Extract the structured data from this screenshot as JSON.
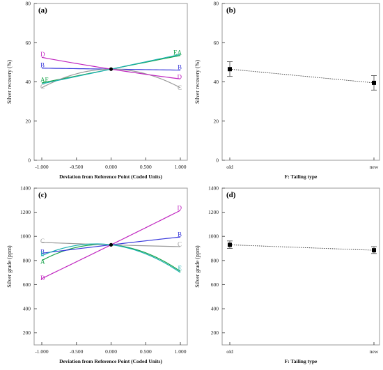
{
  "chart_data": [
    {
      "type": "line",
      "panel_label": "(a)",
      "xlabel": "Deviation from Reference Point (Coded Units)",
      "ylabel": "Silver recovery (%)",
      "xlim": [
        -1,
        1
      ],
      "ylim": [
        0,
        80
      ],
      "xticks": [
        "-1.000",
        "-0.500",
        "0.000",
        "0.500",
        "1.000"
      ],
      "yticks": [
        "0",
        "20",
        "40",
        "60",
        "80"
      ],
      "x": [
        -1,
        0,
        1
      ],
      "series": [
        {
          "name": "A",
          "color": "#16a34a",
          "values": [
            39.5,
            46.5,
            53.5
          ]
        },
        {
          "name": "B",
          "color": "#3b3bdc",
          "values": [
            47.0,
            46.5,
            46.0
          ]
        },
        {
          "name": "C",
          "color": "#9a9a9a",
          "values": [
            37.0,
            46.5,
            37.0
          ]
        },
        {
          "name": "D",
          "color": "#c026c0",
          "values": [
            52.5,
            46.5,
            41.5
          ]
        },
        {
          "name": "E",
          "color": "#1ab0b0",
          "values": [
            39.0,
            46.5,
            54.0
          ]
        }
      ],
      "left_labels": [
        {
          "text": "D",
          "color": "#c026c0",
          "y": 54.0
        },
        {
          "text": "B",
          "color": "#3b3bdc",
          "y": 48.5
        },
        {
          "text": "AE",
          "color": "#16a34a",
          "y": 41.0
        },
        {
          "text": "C",
          "color": "#9a9a9a",
          "y": 37.5
        }
      ],
      "right_labels": [
        {
          "text": "EA",
          "color": "#16a34a",
          "y": 55.0
        },
        {
          "text": "B",
          "color": "#3b3bdc",
          "y": 47.5
        },
        {
          "text": "D",
          "color": "#c026c0",
          "y": 42.5
        },
        {
          "text": "C",
          "color": "#9a9a9a",
          "y": 37.0
        }
      ],
      "reference_point": {
        "x": 0,
        "y": 46.5
      }
    },
    {
      "type": "scatter",
      "panel_label": "(b)",
      "xlabel": "F: Tailing type",
      "ylabel": "Silver recovery (%)",
      "ylim": [
        0,
        80
      ],
      "yticks": [
        "0",
        "20",
        "40",
        "60",
        "80"
      ],
      "categories": [
        "old",
        "new"
      ],
      "values": [
        46.5,
        39.5
      ],
      "error_low": [
        42.8,
        35.8
      ],
      "error_high": [
        50.3,
        43.2
      ]
    },
    {
      "type": "line",
      "panel_label": "(c)",
      "xlabel": "Deviation from Reference Point (Coded Units)",
      "ylabel": "Silver grade (ppm)",
      "xlim": [
        -1,
        1
      ],
      "ylim": [
        100,
        1400
      ],
      "xticks": [
        "-1.000",
        "-0.500",
        "0.000",
        "0.500",
        "1.000"
      ],
      "yticks": [
        "200",
        "400",
        "600",
        "800",
        "1000",
        "1200",
        "1400"
      ],
      "x": [
        -1,
        0,
        1
      ],
      "series": [
        {
          "name": "A",
          "color": "#16a34a",
          "values": [
            800,
            930,
            710
          ]
        },
        {
          "name": "B",
          "color": "#3b3bdc",
          "values": [
            860,
            930,
            995
          ]
        },
        {
          "name": "C",
          "color": "#9a9a9a",
          "values": [
            950,
            930,
            915
          ]
        },
        {
          "name": "D",
          "color": "#c026c0",
          "values": [
            650,
            930,
            1215
          ]
        },
        {
          "name": "E",
          "color": "#1ab0b0",
          "values": [
            840,
            930,
            700
          ]
        }
      ],
      "left_labels": [
        {
          "text": "C",
          "color": "#9a9a9a",
          "y": 960
        },
        {
          "text": "B",
          "color": "#3b3bdc",
          "y": 870
        },
        {
          "text": "E",
          "color": "#1ab0b0",
          "y": 855
        },
        {
          "text": "A",
          "color": "#16a34a",
          "y": 790
        },
        {
          "text": "D",
          "color": "#c026c0",
          "y": 655
        }
      ],
      "right_labels": [
        {
          "text": "D",
          "color": "#c026c0",
          "y": 1235
        },
        {
          "text": "B",
          "color": "#3b3bdc",
          "y": 1015
        },
        {
          "text": "C",
          "color": "#9a9a9a",
          "y": 935
        },
        {
          "text": "E",
          "color": "#1ab0b0",
          "y": 735
        }
      ],
      "reference_point": {
        "x": 0,
        "y": 930
      }
    },
    {
      "type": "scatter",
      "panel_label": "(d)",
      "xlabel": "F: Tailing type",
      "ylabel": "Silver grade (ppm)",
      "ylim": [
        100,
        1400
      ],
      "yticks": [
        "200",
        "400",
        "600",
        "800",
        "1000",
        "1200",
        "1400"
      ],
      "categories": [
        "old",
        "new"
      ],
      "values": [
        930,
        885
      ],
      "error_low": [
        900,
        858
      ],
      "error_high": [
        962,
        915
      ]
    }
  ]
}
